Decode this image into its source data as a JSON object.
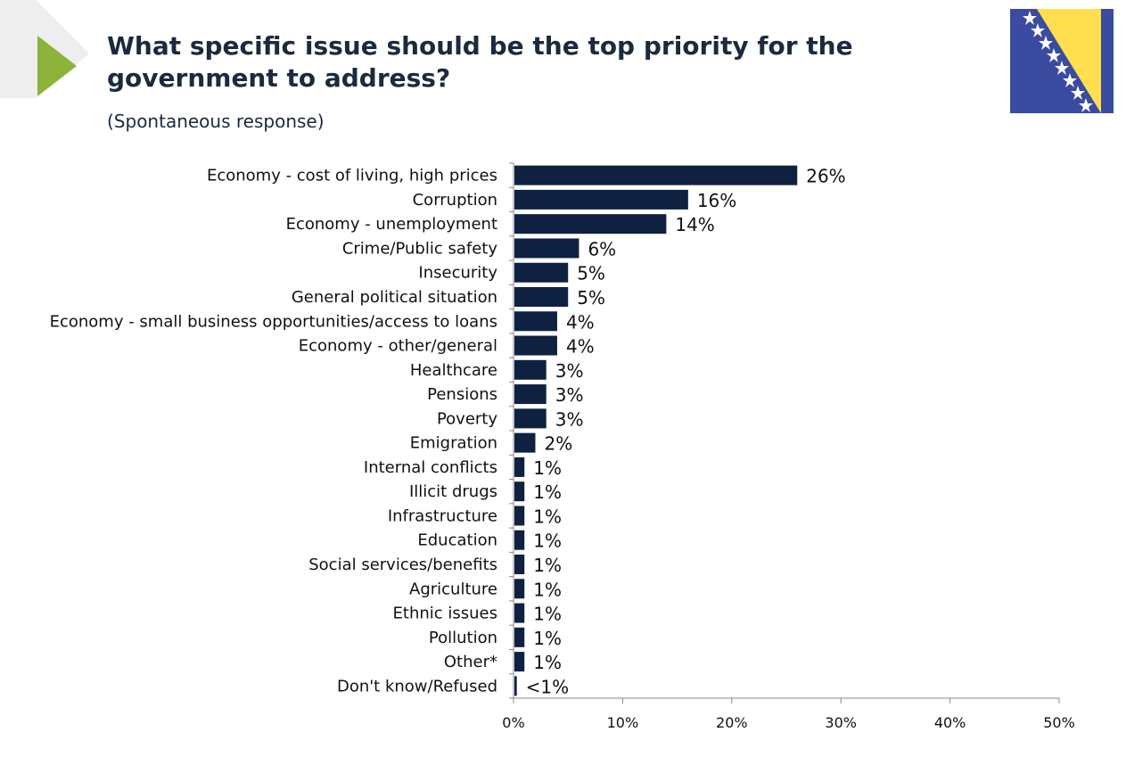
{
  "title": "What specific issue should be the top priority for the government to address?",
  "subtitle": "(Spontaneous response)",
  "colors": {
    "bar": "#0f2140",
    "accent": "#8db33a",
    "flag_blue": "#3b4ba0",
    "flag_yellow": "#ffdf4f"
  },
  "icons": {
    "play": "play-triangle-icon",
    "flag": "bosnia-herzegovina-flag-icon"
  },
  "chart_data": {
    "type": "bar",
    "orientation": "horizontal",
    "categories": [
      "Economy - cost of living, high prices",
      "Corruption",
      "Economy - unemployment",
      "Crime/Public safety",
      "Insecurity",
      "General political situation",
      "Economy - small business opportunities/access to loans",
      "Economy - other/general",
      "Healthcare",
      "Pensions",
      "Poverty",
      "Emigration",
      "Internal conflicts",
      "Illicit drugs",
      "Infrastructure",
      "Education",
      "Social services/benefits",
      "Agriculture",
      "Ethnic issues",
      "Pollution",
      "Other*",
      "Don't know/Refused"
    ],
    "values": [
      26,
      16,
      14,
      6,
      5,
      5,
      4,
      4,
      3,
      3,
      3,
      2,
      1,
      1,
      1,
      1,
      1,
      1,
      1,
      1,
      1,
      0.3
    ],
    "value_labels": [
      "26%",
      "16%",
      "14%",
      "6%",
      "5%",
      "5%",
      "4%",
      "4%",
      "3%",
      "3%",
      "3%",
      "2%",
      "1%",
      "1%",
      "1%",
      "1%",
      "1%",
      "1%",
      "1%",
      "1%",
      "1%",
      "<1%"
    ],
    "xlim": [
      0,
      50
    ],
    "x_ticks": [
      "0%",
      "10%",
      "20%",
      "30%",
      "40%",
      "50%"
    ],
    "x_tick_values": [
      0,
      10,
      20,
      30,
      40,
      50
    ],
    "grid": false,
    "legend": "none"
  }
}
